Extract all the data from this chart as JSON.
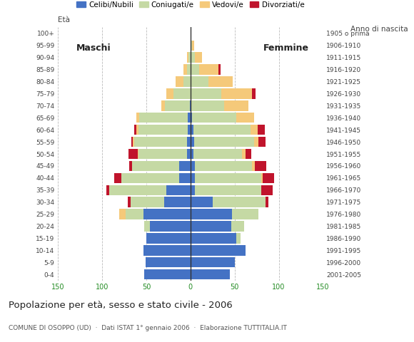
{
  "age_groups": [
    "0-4",
    "5-9",
    "10-14",
    "15-19",
    "20-24",
    "25-29",
    "30-34",
    "35-39",
    "40-44",
    "45-49",
    "50-54",
    "55-59",
    "60-64",
    "65-69",
    "70-74",
    "75-79",
    "80-84",
    "85-89",
    "90-94",
    "95-99",
    "100+"
  ],
  "birth_years": [
    "2001-2005",
    "1996-2000",
    "1991-1995",
    "1986-1990",
    "1981-1985",
    "1976-1980",
    "1971-1975",
    "1966-1970",
    "1961-1965",
    "1956-1960",
    "1951-1955",
    "1946-1950",
    "1941-1945",
    "1936-1940",
    "1931-1935",
    "1926-1930",
    "1921-1925",
    "1916-1920",
    "1911-1915",
    "1906-1910",
    "1905 o prima"
  ],
  "males": {
    "celibi": [
      52,
      51,
      53,
      50,
      46,
      53,
      30,
      27,
      13,
      13,
      4,
      4,
      3,
      3,
      1,
      0,
      0,
      0,
      0,
      0,
      0
    ],
    "coniugati": [
      0,
      0,
      0,
      0,
      6,
      20,
      38,
      65,
      65,
      53,
      55,
      60,
      56,
      55,
      28,
      19,
      8,
      4,
      2,
      0,
      0
    ],
    "vedovi": [
      0,
      0,
      0,
      0,
      0,
      8,
      0,
      0,
      0,
      0,
      1,
      1,
      2,
      3,
      4,
      8,
      9,
      4,
      2,
      0,
      0
    ],
    "divorziati": [
      0,
      0,
      0,
      0,
      0,
      0,
      3,
      3,
      8,
      3,
      10,
      2,
      3,
      0,
      0,
      0,
      0,
      0,
      0,
      0,
      0
    ]
  },
  "females": {
    "nubili": [
      45,
      50,
      62,
      52,
      46,
      47,
      25,
      5,
      5,
      5,
      3,
      4,
      3,
      2,
      0,
      0,
      0,
      0,
      0,
      0,
      0
    ],
    "coniugate": [
      0,
      0,
      0,
      5,
      15,
      30,
      60,
      75,
      75,
      65,
      55,
      68,
      65,
      50,
      38,
      35,
      20,
      10,
      5,
      2,
      0
    ],
    "vedove": [
      0,
      0,
      0,
      0,
      0,
      0,
      0,
      0,
      2,
      3,
      4,
      5,
      8,
      20,
      28,
      35,
      28,
      22,
      8,
      2,
      0
    ],
    "divorziate": [
      0,
      0,
      0,
      0,
      0,
      0,
      3,
      13,
      13,
      13,
      7,
      8,
      8,
      0,
      0,
      4,
      0,
      2,
      0,
      0,
      0
    ]
  },
  "colors": {
    "celibi": "#4472C4",
    "coniugati": "#C5D9A4",
    "vedovi": "#F5C97A",
    "divorziati": "#C0142C"
  },
  "xlim": 150,
  "title": "Popolazione per età, sesso e stato civile - 2006",
  "subtitle": "COMUNE DI OSOPPO (UD)  ·  Dati ISTAT 1° gennaio 2006  ·  Elaborazione TUTTITALIA.IT",
  "xlabel_left": "Maschi",
  "xlabel_right": "Femmine",
  "ylabel": "Età",
  "ylabel_right": "Anno di nascita",
  "legend_labels": [
    "Celibi/Nubili",
    "Coniugati/e",
    "Vedovi/e",
    "Divorziati/e"
  ],
  "bg_color": "#ffffff",
  "grid_color": "#bbbbbb"
}
